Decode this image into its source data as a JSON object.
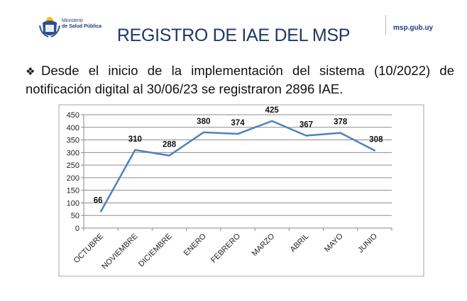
{
  "header": {
    "logo_text_line1": "Ministerio",
    "logo_text_line2": "de Salud Pública",
    "site": "msp.gub.uy",
    "title": "REGISTRO DE IAE DEL MSP"
  },
  "bullet": {
    "icon": "diamond-bullet-icon",
    "text": "Desde el inicio de la implementación del sistema (10/2022) de notificación digital al 30/06/23 se registraron 2896 IAE."
  },
  "chart_data": {
    "type": "line",
    "categories": [
      "OCTUBRE",
      "NOVIEMBRE",
      "DICIEMBRE",
      "ENERO",
      "FEBRERO",
      "MARZO",
      "ABRIL",
      "MAYO",
      "JUNIO"
    ],
    "values": [
      66,
      310,
      288,
      380,
      374,
      425,
      367,
      378,
      308
    ],
    "ylim": [
      0,
      450
    ],
    "yticks": [
      0,
      50,
      100,
      150,
      200,
      250,
      300,
      350,
      400,
      450
    ],
    "grid": true,
    "data_labels": true,
    "line_color": "#4f81bd"
  }
}
